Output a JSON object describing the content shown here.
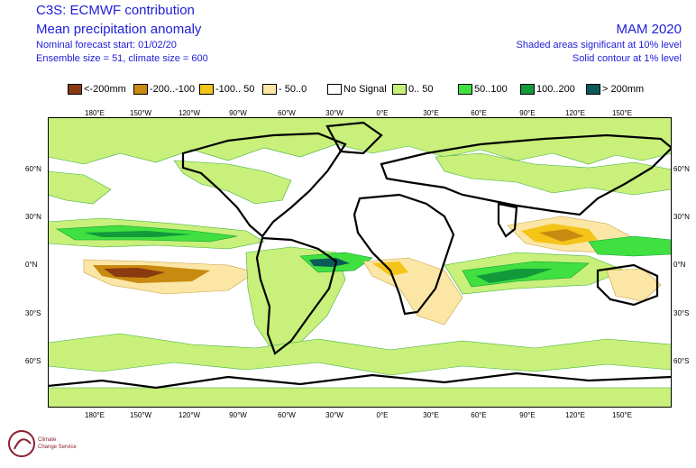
{
  "header": {
    "title_line1": "C3S: ECMWF contribution",
    "title_line2": "Mean precipitation anomaly",
    "start_line": "Nominal forecast start: 01/02/20",
    "size_line": "Ensemble size = 51, climate size = 600",
    "season": "MAM 2020",
    "shade_note": "Shaded areas significant at 10% level",
    "contour_note": "Solid contour at 1% level"
  },
  "legend": [
    {
      "label": "<-200mm",
      "color": "#8a3a10"
    },
    {
      "label": "-200..-100",
      "color": "#c88a10"
    },
    {
      "label": "-100.. 50",
      "color": "#f5c418"
    },
    {
      "label": "- 50..0",
      "color": "#fbe6a6"
    },
    {
      "label": "No Signal",
      "color": "#ffffff"
    },
    {
      "label": "0.. 50",
      "color": "#c8f07a"
    },
    {
      "label": "50..100",
      "color": "#3fe03f"
    },
    {
      "label": "100..200",
      "color": "#129a3a"
    },
    {
      "label": "> 200mm",
      "color": "#0a5a5a"
    }
  ],
  "axes": {
    "lon_labels": [
      "180°E",
      "150°W",
      "120°W",
      "90°W",
      "60°W",
      "30°W",
      "0°E",
      "30°E",
      "60°E",
      "90°E",
      "120°E",
      "150°E"
    ],
    "lat_labels": [
      "60°N",
      "30°N",
      "0°N",
      "30°S",
      "60°S"
    ]
  },
  "logo": {
    "name_line1": "Climate",
    "name_line2": "Change Service"
  }
}
